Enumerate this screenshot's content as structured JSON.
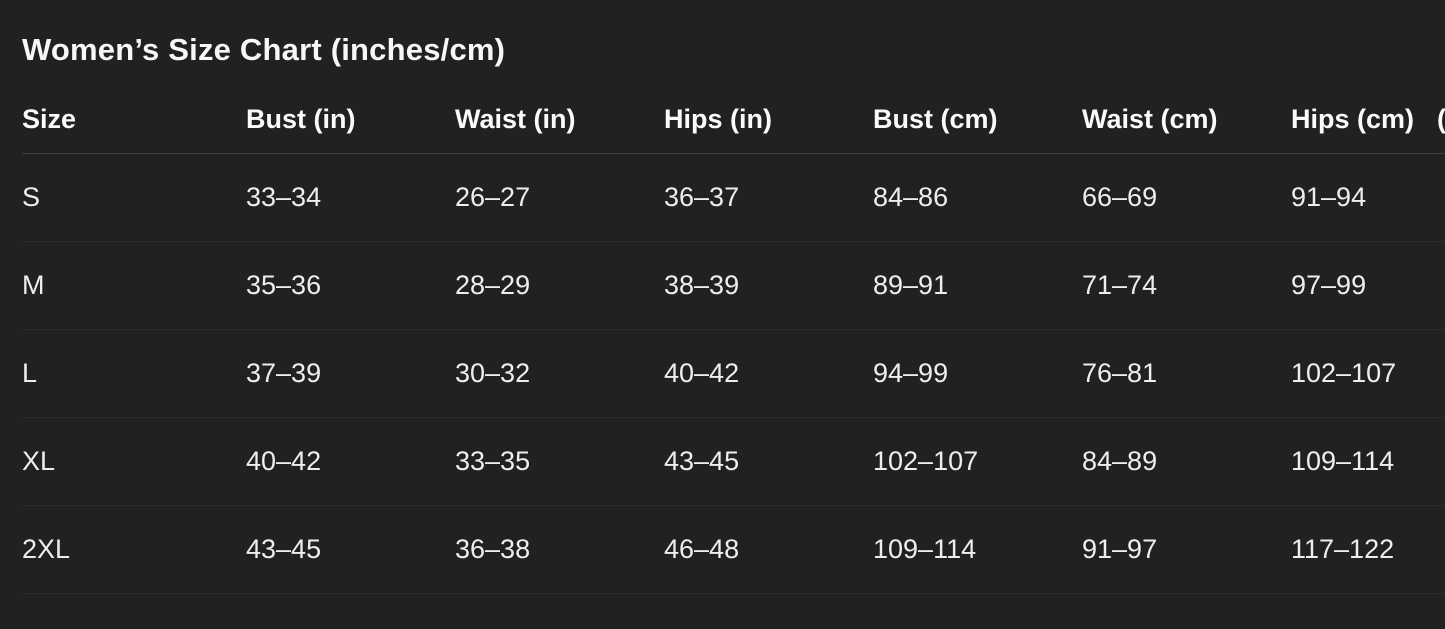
{
  "page": {
    "title": "Women’s Size Chart (inches/cm)"
  },
  "table": {
    "columns": [
      "Size",
      "Bust (in)",
      "Waist (in)",
      "Hips (in)",
      "Bust (cm)",
      "Waist (cm)",
      "Hips (cm)",
      "("
    ],
    "rows": [
      [
        "S",
        "33–34",
        "26–27",
        "36–37",
        "84–86",
        "66–69",
        "91–94",
        ""
      ],
      [
        "M",
        "35–36",
        "28–29",
        "38–39",
        "89–91",
        "71–74",
        "97–99",
        ""
      ],
      [
        "L",
        "37–39",
        "30–32",
        "40–42",
        "94–99",
        "76–81",
        "102–107",
        ""
      ],
      [
        "XL",
        "40–42",
        "33–35",
        "43–45",
        "102–107",
        "84–89",
        "109–114",
        ""
      ],
      [
        "2XL",
        "43–45",
        "36–38",
        "46–48",
        "109–114",
        "91–97",
        "117–122",
        ""
      ]
    ]
  },
  "colors": {
    "background": "#212122",
    "text": "#f7f7f8",
    "header_divider": "#3e3e40",
    "row_divider": "#2d2d2f"
  }
}
